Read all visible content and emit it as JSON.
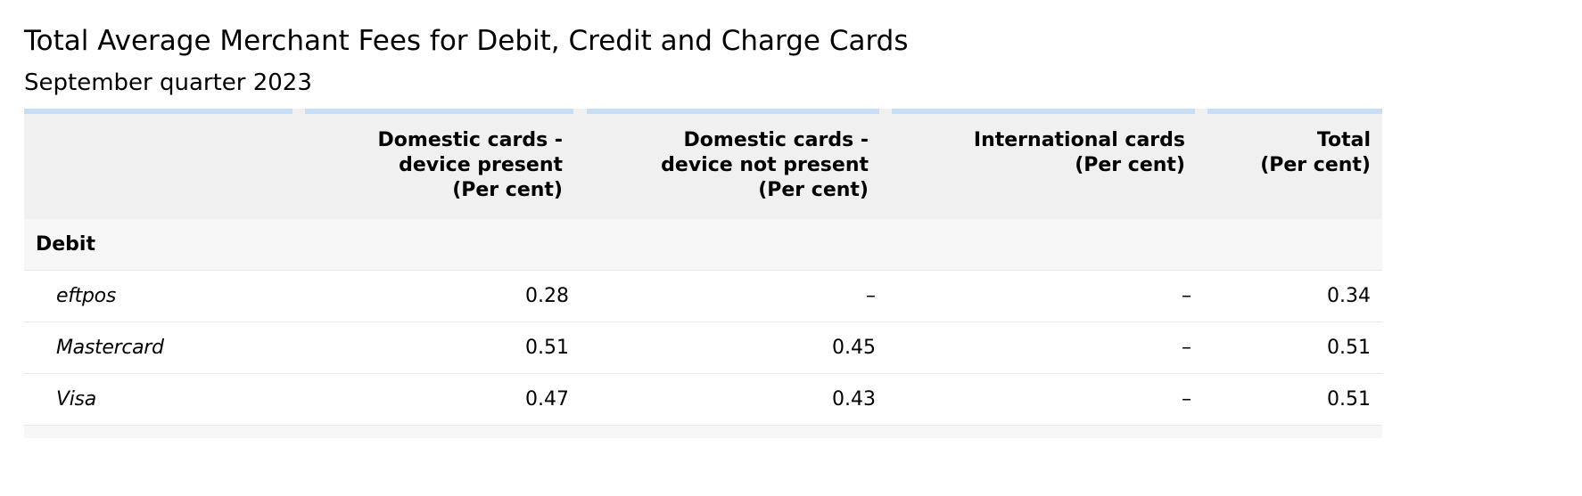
{
  "title": "Total Average Merchant Fees for Debit, Credit and Charge Cards",
  "subtitle": "September quarter 2023",
  "columns": [
    {
      "lines": [
        "",
        "",
        ""
      ]
    },
    {
      "lines": [
        "Domestic cards -",
        "device present",
        "(Per cent)"
      ]
    },
    {
      "lines": [
        "Domestic cards -",
        "device not present",
        "(Per cent)"
      ]
    },
    {
      "lines": [
        "International cards",
        "(Per cent)",
        ""
      ]
    },
    {
      "lines": [
        "Total",
        "(Per cent)",
        ""
      ]
    }
  ],
  "group": {
    "label": "Debit"
  },
  "rows": [
    {
      "label": "eftpos",
      "values": [
        "0.28",
        "–",
        "–",
        "0.34"
      ]
    },
    {
      "label": "Mastercard",
      "values": [
        "0.51",
        "0.45",
        "–",
        "0.51"
      ]
    },
    {
      "label": "Visa",
      "values": [
        "0.47",
        "0.43",
        "–",
        "0.51"
      ]
    }
  ],
  "colors": {
    "header_bar": "#c6ddf4",
    "header_bg": "#f0f0f0",
    "group_bg": "#f7f7f7",
    "row_border": "#e9e9e9"
  }
}
